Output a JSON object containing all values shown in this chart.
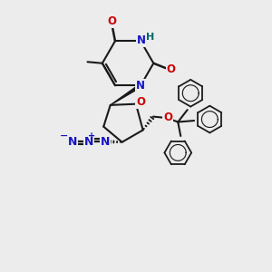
{
  "bg_color": "#ececec",
  "bond_color": "#1a1a1a",
  "n_color": "#1414c8",
  "o_color": "#cc0000",
  "h_color": "#006666",
  "lw": 1.5,
  "xlim": [
    0,
    10
  ],
  "ylim": [
    0,
    10
  ]
}
